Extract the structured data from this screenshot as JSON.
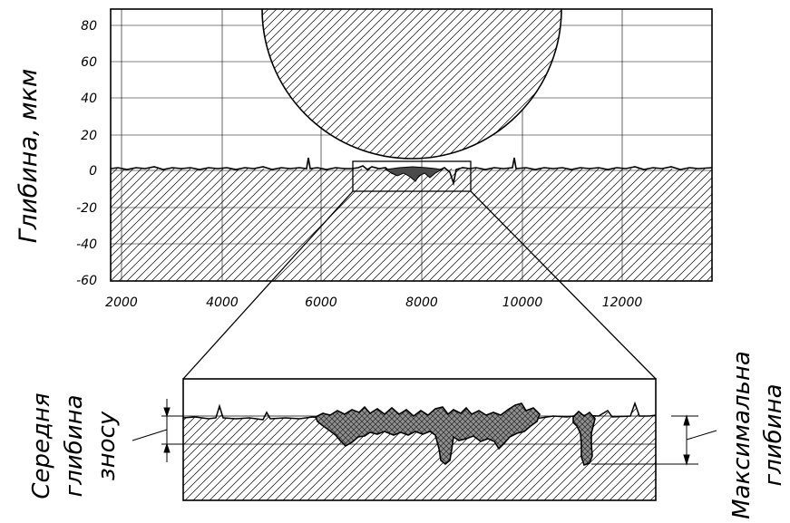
{
  "chart": {
    "y_axis_label": "Глибина, мкм",
    "y_ticks": [
      "80",
      "60",
      "40",
      "20",
      "0",
      "-20",
      "-40",
      "-60"
    ],
    "x_ticks": [
      "2000",
      "4000",
      "6000",
      "8000",
      "10000",
      "12000"
    ]
  },
  "zoom": {
    "left_label": [
      "Середня",
      "глибина",
      "зносу"
    ],
    "right_label": [
      "Максимальна",
      "глибина"
    ]
  }
}
